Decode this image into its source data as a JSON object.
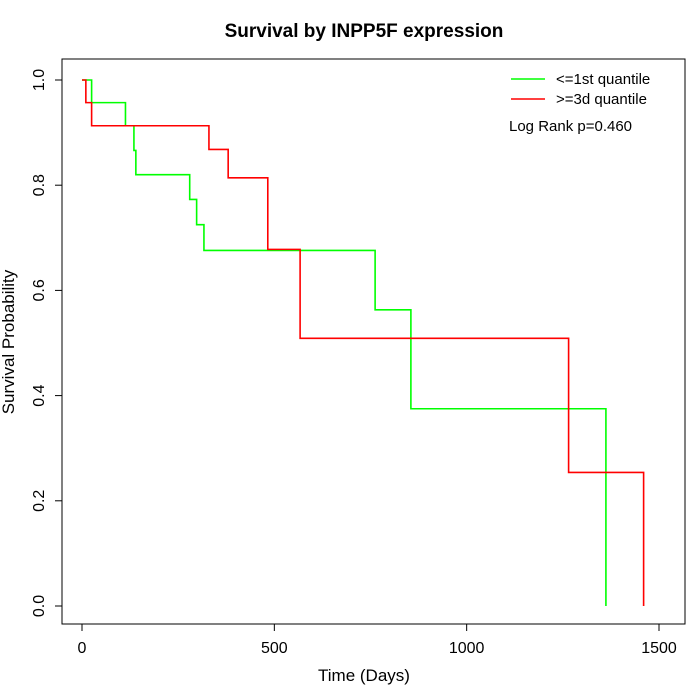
{
  "chart_data": {
    "type": "line",
    "title": "Survival by INPP5F expression",
    "xlabel": "Time (Days)",
    "ylabel": "Survival Probability",
    "xlim": [
      0,
      1500
    ],
    "ylim": [
      0,
      1
    ],
    "x_ticks": [
      0,
      500,
      1000,
      1500
    ],
    "y_ticks": [
      0.0,
      0.2,
      0.4,
      0.6,
      0.8,
      1.0
    ],
    "x_tick_labels": [
      "0",
      "500",
      "1000",
      "1500"
    ],
    "y_tick_labels": [
      "0.0",
      "0.2",
      "0.4",
      "0.6",
      "0.8",
      "1.0"
    ],
    "grid": false,
    "legend_position": "top-right",
    "annotation": "Log Rank p=0.460",
    "series": [
      {
        "name": "<=1st quantile",
        "color": "#00ff00",
        "steps": [
          [
            0,
            1.0
          ],
          [
            25,
            0.957
          ],
          [
            113,
            0.913
          ],
          [
            135,
            0.866
          ],
          [
            140,
            0.82
          ],
          [
            280,
            0.773
          ],
          [
            298,
            0.725
          ],
          [
            317,
            0.676
          ],
          [
            762,
            0.563
          ],
          [
            855,
            0.375
          ],
          [
            1362,
            0.0
          ]
        ]
      },
      {
        "name": ">=3d quantile",
        "color": "#ff0000",
        "steps": [
          [
            0,
            1.0
          ],
          [
            10,
            0.957
          ],
          [
            25,
            0.913
          ],
          [
            330,
            0.868
          ],
          [
            380,
            0.814
          ],
          [
            483,
            0.678
          ],
          [
            567,
            0.509
          ],
          [
            1265,
            0.254
          ],
          [
            1460,
            0.0
          ]
        ]
      }
    ]
  }
}
